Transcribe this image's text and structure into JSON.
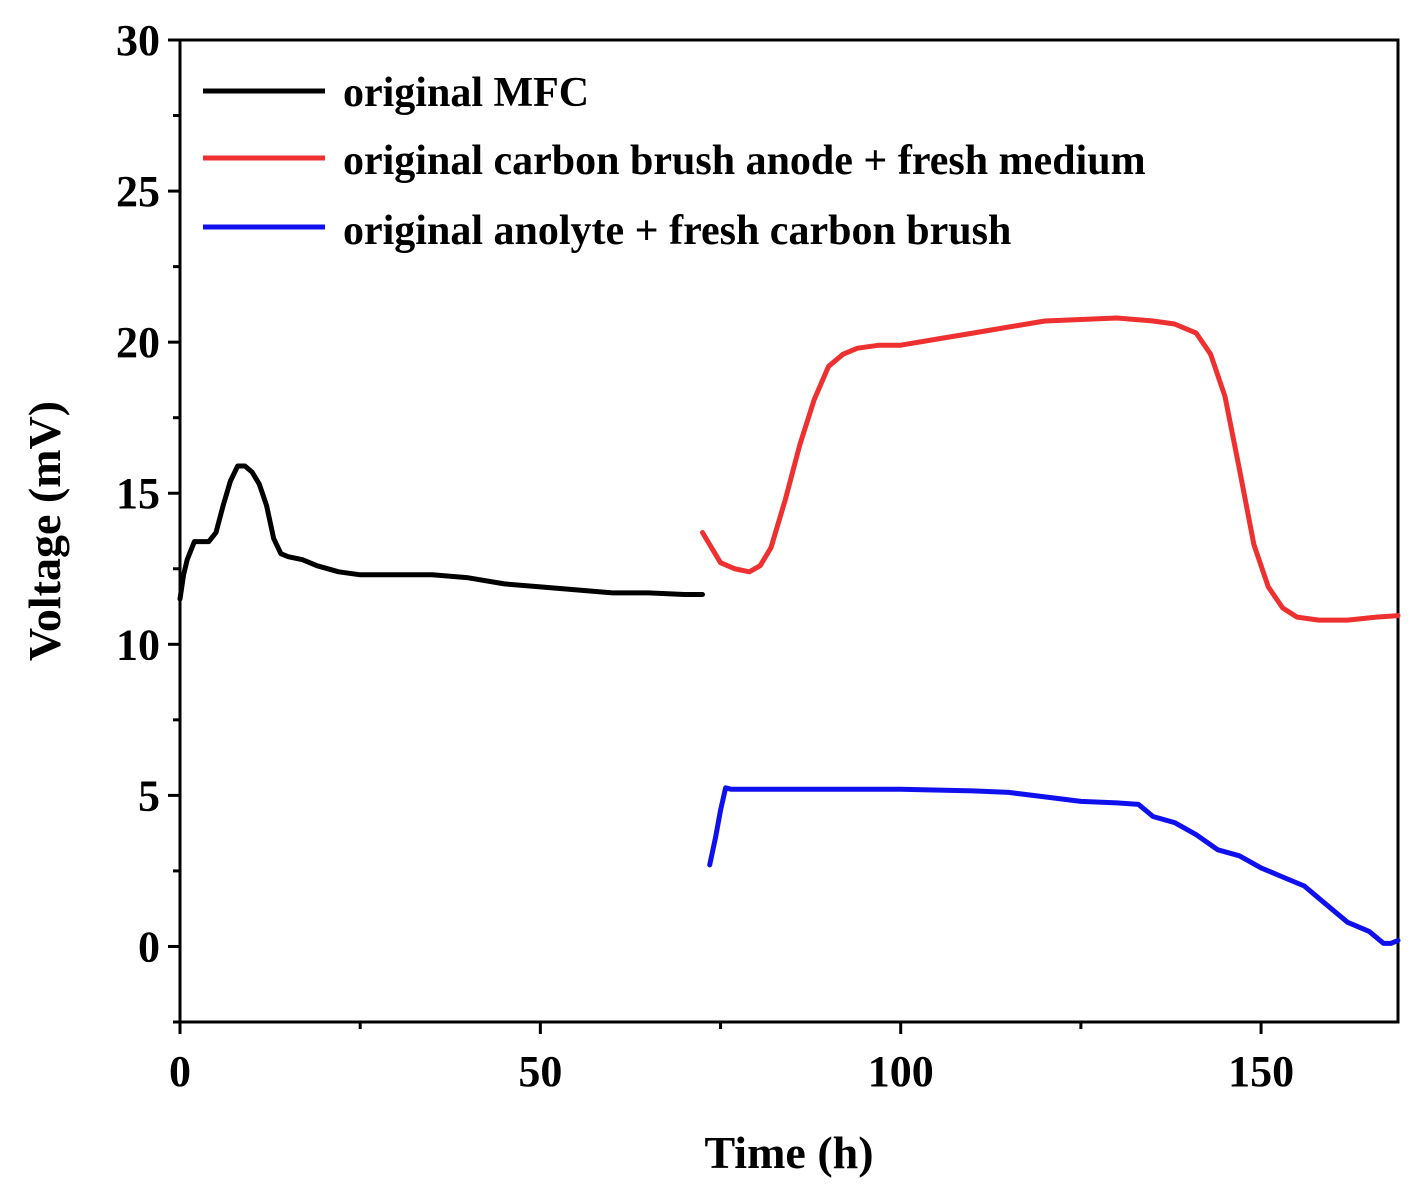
{
  "chart_data": {
    "type": "line",
    "title": "",
    "xlabel": "Time (h)",
    "ylabel": "Voltage (mV)",
    "xlim": [
      0,
      169
    ],
    "ylim": [
      -2.5,
      30
    ],
    "x_ticks": [
      0,
      50,
      100,
      150
    ],
    "x_tick_labels": [
      "0",
      "50",
      "100",
      "150"
    ],
    "y_ticks": [
      0,
      5,
      10,
      15,
      20,
      25,
      30
    ],
    "y_tick_labels": [
      "0",
      "5",
      "10",
      "15",
      "20",
      "25",
      "30"
    ],
    "legend_position": "top-left",
    "series": [
      {
        "name": "original MFC",
        "color": "#000000",
        "x": [
          0,
          0.5,
          1,
          2,
          3,
          4,
          5,
          6,
          7,
          8,
          9,
          10,
          11,
          12,
          13,
          14,
          15,
          17,
          19,
          22,
          25,
          28,
          31,
          35,
          40,
          45,
          50,
          55,
          60,
          65,
          70,
          72.5
        ],
        "y": [
          11.5,
          12.3,
          12.8,
          13.4,
          13.4,
          13.4,
          13.7,
          14.6,
          15.4,
          15.9,
          15.9,
          15.7,
          15.3,
          14.6,
          13.5,
          13.0,
          12.9,
          12.8,
          12.6,
          12.4,
          12.3,
          12.3,
          12.3,
          12.3,
          12.2,
          12.0,
          11.9,
          11.8,
          11.7,
          11.7,
          11.65,
          11.65
        ]
      },
      {
        "name": "original carbon brush anode + fresh medium",
        "color": "#ee3030",
        "x": [
          72.5,
          73.5,
          75,
          77,
          79,
          80.5,
          82,
          84,
          86,
          88,
          90,
          92,
          94,
          97,
          100,
          105,
          110,
          115,
          120,
          125,
          130,
          135,
          138,
          141,
          143,
          145,
          147,
          149,
          151,
          153,
          155,
          158,
          162,
          166,
          169
        ],
        "y": [
          13.7,
          13.3,
          12.7,
          12.5,
          12.4,
          12.6,
          13.2,
          14.8,
          16.6,
          18.1,
          19.2,
          19.6,
          19.8,
          19.9,
          19.9,
          20.1,
          20.3,
          20.5,
          20.7,
          20.75,
          20.8,
          20.7,
          20.6,
          20.3,
          19.6,
          18.2,
          15.8,
          13.3,
          11.9,
          11.2,
          10.9,
          10.8,
          10.8,
          10.9,
          10.95
        ]
      },
      {
        "name": "original anolyte + fresh carbon brush",
        "color": "#1010ee",
        "x": [
          73.5,
          74.3,
          75,
          75.7,
          76.5,
          80,
          90,
          100,
          110,
          115,
          120,
          125,
          130,
          133,
          135,
          138,
          141,
          144,
          147,
          150,
          153,
          156,
          159,
          162,
          165,
          167,
          168,
          169
        ],
        "y": [
          2.7,
          3.6,
          4.5,
          5.25,
          5.2,
          5.2,
          5.2,
          5.2,
          5.15,
          5.1,
          4.95,
          4.8,
          4.75,
          4.7,
          4.3,
          4.1,
          3.7,
          3.2,
          3.0,
          2.6,
          2.3,
          2.0,
          1.4,
          0.8,
          0.5,
          0.1,
          0.1,
          0.2
        ]
      }
    ]
  }
}
